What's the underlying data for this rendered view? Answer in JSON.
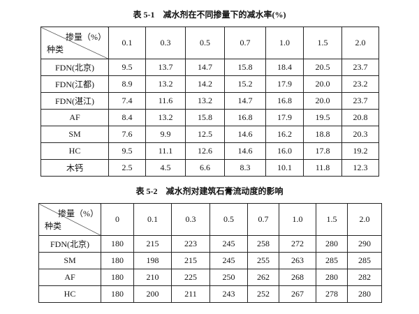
{
  "table1": {
    "title": "表 5-1　减水剂在不同掺量下的减水率(%)",
    "header_top": "掺量（%）",
    "header_bottom": "种类",
    "columns": [
      "0.1",
      "0.3",
      "0.5",
      "0.7",
      "1.0",
      "1.5",
      "2.0"
    ],
    "rows": [
      {
        "label": "FDN(北京)",
        "values": [
          "9.5",
          "13.7",
          "14.7",
          "15.8",
          "18.4",
          "20.5",
          "23.7"
        ]
      },
      {
        "label": "FDN(江都)",
        "values": [
          "8.9",
          "13.2",
          "14.2",
          "15.2",
          "17.9",
          "20.0",
          "23.2"
        ]
      },
      {
        "label": "FDN(湛江)",
        "values": [
          "7.4",
          "11.6",
          "13.2",
          "14.7",
          "16.8",
          "20.0",
          "23.7"
        ]
      },
      {
        "label": "AF",
        "values": [
          "8.4",
          "13.2",
          "15.8",
          "16.8",
          "17.9",
          "19.5",
          "20.8"
        ]
      },
      {
        "label": "SM",
        "values": [
          "7.6",
          "9.9",
          "12.5",
          "14.6",
          "16.2",
          "18.8",
          "20.3"
        ]
      },
      {
        "label": "HC",
        "values": [
          "9.5",
          "11.1",
          "12.6",
          "14.6",
          "16.0",
          "17.8",
          "19.2"
        ]
      },
      {
        "label": "木钙",
        "values": [
          "2.5",
          "4.5",
          "6.6",
          "8.3",
          "10.1",
          "11.8",
          "12.3"
        ]
      }
    ]
  },
  "table2": {
    "title": "表 5-2　减水剂对建筑石膏流动度的影响",
    "header_top": "掺量（%）",
    "header_bottom": "种类",
    "columns": [
      "0",
      "0.1",
      "0.3",
      "0.5",
      "0.7",
      "1.0",
      "1.5",
      "2.0"
    ],
    "rows": [
      {
        "label": "FDN(北京)",
        "values": [
          "180",
          "215",
          "223",
          "245",
          "258",
          "272",
          "280",
          "290"
        ]
      },
      {
        "label": "SM",
        "values": [
          "180",
          "198",
          "215",
          "245",
          "255",
          "263",
          "285",
          "285"
        ]
      },
      {
        "label": "AF",
        "values": [
          "180",
          "210",
          "225",
          "250",
          "262",
          "268",
          "280",
          "282"
        ]
      },
      {
        "label": "HC",
        "values": [
          "180",
          "200",
          "211",
          "243",
          "252",
          "267",
          "278",
          "280"
        ]
      }
    ]
  }
}
